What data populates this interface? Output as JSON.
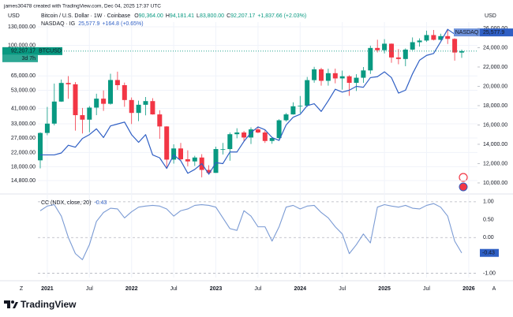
{
  "header": {
    "attribution": "james30478 created with TradingView.com, Dec 04, 2025 17:37 UTC"
  },
  "footer": {
    "brand": "TradingView"
  },
  "chart_data": [
    {
      "type": "candlestick",
      "ylabel": "USD",
      "y2label": "USD",
      "legend": {
        "title": "Bitcoin / U.S. Dollar · 1W · Coinbase",
        "ohlc": [
          {
            "key": "O",
            "value": "90,364.00"
          },
          {
            "key": "H",
            "value": "94,181.41"
          },
          {
            "key": "L",
            "value": "83,800.00"
          },
          {
            "key": "C",
            "value": "92,207.17"
          }
        ],
        "change": "+1,837.66 (+2.03%)"
      },
      "categories": [
        "2020-12",
        "2021-01",
        "2021-02",
        "2021-03",
        "2021-04",
        "2021-05",
        "2021-06",
        "2021-07",
        "2021-08",
        "2021-09",
        "2021-10",
        "2021-11",
        "2021-12",
        "2022-01",
        "2022-02",
        "2022-03",
        "2022-04",
        "2022-05",
        "2022-06",
        "2022-07",
        "2022-08",
        "2022-09",
        "2022-10",
        "2022-11",
        "2022-12",
        "2023-01",
        "2023-02",
        "2023-03",
        "2023-04",
        "2023-05",
        "2023-06",
        "2023-07",
        "2023-08",
        "2023-09",
        "2023-10",
        "2023-11",
        "2023-12",
        "2024-01",
        "2024-02",
        "2024-03",
        "2024-04",
        "2024-05",
        "2024-06",
        "2024-07",
        "2024-08",
        "2024-09",
        "2024-10",
        "2024-11",
        "2024-12",
        "2025-01",
        "2025-02",
        "2025-03",
        "2025-04",
        "2025-05",
        "2025-06",
        "2025-07",
        "2025-08",
        "2025-09",
        "2025-10",
        "2025-11",
        "2025-12"
      ],
      "series": [
        {
          "name": "BTCUSD",
          "up_color": "#089981",
          "down_color": "#f23645",
          "last_label": "92,207.17",
          "countdown": "3d 7h",
          "open": [
            19700,
            29000,
            33100,
            45200,
            58800,
            57700,
            37300,
            35000,
            41500,
            47100,
            43800,
            61300,
            57000,
            46200,
            38500,
            43200,
            45500,
            37700,
            31800,
            19900,
            23300,
            20000,
            19400,
            20500,
            17200,
            16500,
            23100,
            23100,
            28500,
            29200,
            27200,
            30500,
            29200,
            25900,
            27000,
            34700,
            37700,
            42300,
            42600,
            61200,
            71300,
            60600,
            67500,
            62700,
            64600,
            58900,
            63300,
            70200,
            96400,
            93400,
            102400,
            84300,
            82500,
            94200,
            104600,
            107100,
            115700,
            108200,
            114000,
            109600,
            90364
          ],
          "high": [
            29300,
            41900,
            58300,
            61700,
            64800,
            59500,
            41300,
            42400,
            50500,
            52900,
            67000,
            69000,
            59100,
            47900,
            45800,
            48200,
            47400,
            40000,
            31900,
            24700,
            25200,
            22700,
            21000,
            21500,
            18400,
            23900,
            25200,
            29200,
            31000,
            29800,
            31400,
            31800,
            30200,
            27500,
            35200,
            38400,
            44700,
            48900,
            64000,
            73800,
            72800,
            71900,
            72000,
            70000,
            65600,
            66500,
            73600,
            99600,
            108300,
            109300,
            102700,
            95000,
            95800,
            111900,
            110400,
            123200,
            124400,
            117900,
            126200,
            110600,
            94181.41
          ],
          "low": [
            17600,
            28100,
            32300,
            45000,
            47000,
            30000,
            28800,
            29300,
            37300,
            39600,
            43300,
            53300,
            42000,
            32900,
            34300,
            37200,
            37600,
            26700,
            17600,
            18800,
            19600,
            18100,
            18200,
            15500,
            16300,
            16500,
            21400,
            19600,
            26900,
            25800,
            24800,
            28900,
            25200,
            24900,
            26600,
            34100,
            37600,
            38500,
            41900,
            59000,
            56600,
            56600,
            58500,
            53500,
            49000,
            52500,
            58900,
            66800,
            90500,
            89200,
            78200,
            76600,
            74500,
            93300,
            98200,
            105100,
            107300,
            107300,
            102000,
            80600,
            83800
          ],
          "close": [
            29000,
            33100,
            45200,
            58800,
            57700,
            37300,
            35000,
            41500,
            47100,
            43800,
            61300,
            57000,
            46200,
            38500,
            43200,
            45500,
            37700,
            31800,
            19900,
            23300,
            20000,
            19400,
            20500,
            17200,
            16500,
            23100,
            23100,
            28500,
            29200,
            27200,
            30500,
            29200,
            25900,
            27000,
            34700,
            37700,
            42300,
            42600,
            61200,
            71300,
            60600,
            67500,
            62700,
            64600,
            58900,
            63300,
            70200,
            96400,
            93400,
            102400,
            84300,
            82500,
            94200,
            104600,
            107100,
            115700,
            108200,
            114000,
            109600,
            90400,
            92207.17
          ]
        },
        {
          "name": "NASDAQ",
          "legend_title": "NASDAQ · IG",
          "type": "line",
          "axis": "y2",
          "color": "#2f5fc4",
          "last_label": "25,577.9",
          "change": "+164.8 (+0.65%)",
          "values": [
            12900,
            12900,
            12900,
            13100,
            13900,
            13700,
            14600,
            15000,
            15600,
            14700,
            15900,
            16100,
            16300,
            15000,
            14200,
            15000,
            12900,
            12600,
            11500,
            12900,
            12300,
            11000,
            11400,
            12000,
            10900,
            12100,
            12000,
            13200,
            13200,
            14300,
            15200,
            15800,
            15500,
            14700,
            14400,
            16000,
            16800,
            17100,
            18000,
            18200,
            17400,
            18500,
            19700,
            19400,
            19600,
            20000,
            19900,
            20900,
            21000,
            21500,
            20900,
            19300,
            19600,
            21300,
            22700,
            23200,
            23400,
            24600,
            25900,
            25400,
            25577.9
          ]
        }
      ],
      "log_scale": true,
      "ylim": [
        12660,
        139000
      ],
      "yticks": [
        {
          "value": 130000,
          "label": "130,000.00"
        },
        {
          "value": 100000,
          "label": "100,000.00"
        },
        {
          "value": 65000,
          "label": "65,000.00"
        },
        {
          "value": 53000,
          "label": "53,000.00"
        },
        {
          "value": 41000,
          "label": "41,000.00"
        },
        {
          "value": 33000,
          "label": "33,000.00"
        },
        {
          "value": 27000,
          "label": "27,000.00"
        },
        {
          "value": 22000,
          "label": "22,000.00"
        },
        {
          "value": 18000,
          "label": "18,000.00"
        },
        {
          "value": 14800,
          "label": "14,800.00"
        }
      ],
      "y2lim": [
        9100,
        26650
      ],
      "y2ticks": [
        {
          "value": 26000,
          "label": "26,000.00"
        },
        {
          "value": 24000,
          "label": "24,000.00"
        },
        {
          "value": 22000,
          "label": "22,000.00"
        },
        {
          "value": 20000,
          "label": "20,000.00"
        },
        {
          "value": 18000,
          "label": "18,000.00"
        },
        {
          "value": 16000,
          "label": "16,000.00"
        },
        {
          "value": 14000,
          "label": "14,000.00"
        },
        {
          "value": 12000,
          "label": "12,000.00"
        },
        {
          "value": 10000,
          "label": "10,000.00"
        }
      ],
      "grid": true
    },
    {
      "type": "line",
      "title": "CC (NDX, close, 20)",
      "categories": [
        "2020-12",
        "2021-01",
        "2021-02",
        "2021-03",
        "2021-04",
        "2021-05",
        "2021-06",
        "2021-07",
        "2021-08",
        "2021-09",
        "2021-10",
        "2021-11",
        "2021-12",
        "2022-01",
        "2022-02",
        "2022-03",
        "2022-04",
        "2022-05",
        "2022-06",
        "2022-07",
        "2022-08",
        "2022-09",
        "2022-10",
        "2022-11",
        "2022-12",
        "2023-01",
        "2023-02",
        "2023-03",
        "2023-04",
        "2023-05",
        "2023-06",
        "2023-07",
        "2023-08",
        "2023-09",
        "2023-10",
        "2023-11",
        "2023-12",
        "2024-01",
        "2024-02",
        "2024-03",
        "2024-04",
        "2024-05",
        "2024-06",
        "2024-07",
        "2024-08",
        "2024-09",
        "2024-10",
        "2024-11",
        "2024-12",
        "2025-01",
        "2025-02",
        "2025-03",
        "2025-04",
        "2025-05",
        "2025-06",
        "2025-07",
        "2025-08",
        "2025-09",
        "2025-10",
        "2025-11",
        "2025-12"
      ],
      "series": [
        {
          "color": "#7b9bd4",
          "values": [
            0.75,
            0.88,
            0.92,
            0.6,
            0.0,
            -0.45,
            -0.62,
            -0.2,
            0.45,
            0.7,
            0.82,
            0.8,
            0.55,
            0.72,
            0.85,
            0.88,
            0.9,
            0.88,
            0.8,
            0.6,
            0.75,
            0.8,
            0.9,
            0.92,
            0.9,
            0.85,
            0.55,
            0.25,
            0.2,
            0.75,
            0.6,
            0.3,
            0.3,
            -0.1,
            0.3,
            0.85,
            0.9,
            0.8,
            0.88,
            0.9,
            0.7,
            0.55,
            0.3,
            0.1,
            -0.45,
            -0.2,
            0.1,
            -0.15,
            0.85,
            0.92,
            0.88,
            0.85,
            0.9,
            0.82,
            0.8,
            0.9,
            0.95,
            0.85,
            0.6,
            -0.1,
            -0.43
          ]
        }
      ],
      "ylim": [
        -1.12,
        1.13
      ],
      "yticks": [
        {
          "value": 1,
          "label": "1.00"
        },
        {
          "value": 0.5,
          "label": "0.50"
        },
        {
          "value": 0,
          "label": "0.00"
        },
        {
          "value": -1,
          "label": "-1.00"
        }
      ],
      "levels": [
        1,
        0,
        -1
      ],
      "xticks": [
        {
          "value": "2021-01",
          "label": "2021"
        },
        {
          "value": "2021-07",
          "label": "Jul"
        },
        {
          "value": "2022-01",
          "label": "2022"
        },
        {
          "value": "2022-07",
          "label": "Jul"
        },
        {
          "value": "2023-01",
          "label": "2023"
        },
        {
          "value": "2023-07",
          "label": "Jul"
        },
        {
          "value": "2024-01",
          "label": "2024"
        },
        {
          "value": "2024-07",
          "label": "Jul"
        },
        {
          "value": "2025-01",
          "label": "2025"
        },
        {
          "value": "2025-07",
          "label": "Jul"
        },
        {
          "value": "2026-01",
          "label": "2026"
        }
      ],
      "axis_corner_labels": [
        "Z",
        "A"
      ]
    }
  ]
}
